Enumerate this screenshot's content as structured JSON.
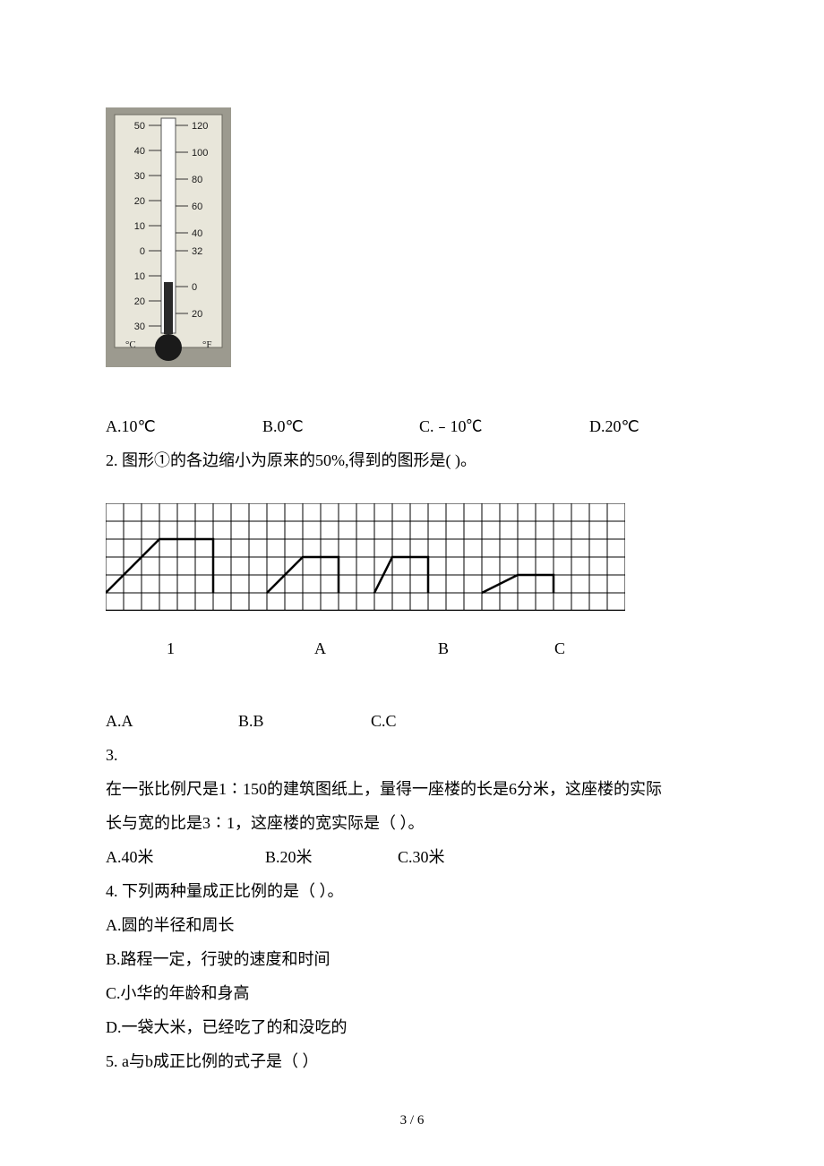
{
  "thermometer": {
    "bg_color": "#9c9a8f",
    "body_color": "#f2f0e5",
    "bulb_color": "#1a1a1a",
    "left_labels": [
      "50",
      "40",
      "30",
      "20",
      "10",
      "0",
      "10",
      "20",
      "30"
    ],
    "right_labels": [
      "120",
      "100",
      "80",
      "60",
      "40",
      "32",
      "0",
      "20"
    ],
    "unit_c": "°C",
    "unit_f": "°F"
  },
  "q1_options": {
    "a": "A.10℃",
    "b": "B.0℃",
    "c": "C.﹣10℃",
    "d": "D.20℃"
  },
  "q2_stem": "2. 图形①的各边缩小为原来的50%,得到的图形是(    )。",
  "grid": {
    "cols": 29,
    "rows": 6,
    "cell": 20,
    "stroke": "#000000",
    "bg": "#ffffff",
    "shapes": [
      {
        "pts": [
          [
            0,
            5
          ],
          [
            3,
            2
          ],
          [
            6,
            2
          ],
          [
            6,
            5
          ]
        ]
      },
      {
        "pts": [
          [
            9,
            5
          ],
          [
            11,
            3
          ],
          [
            13,
            3
          ],
          [
            13,
            5
          ]
        ]
      },
      {
        "pts": [
          [
            15,
            5
          ],
          [
            16,
            3
          ],
          [
            18,
            3
          ],
          [
            18,
            5
          ]
        ]
      },
      {
        "pts": [
          [
            21,
            5
          ],
          [
            23,
            4
          ],
          [
            25,
            4
          ],
          [
            25,
            5
          ]
        ]
      }
    ],
    "labels": {
      "l1": "1",
      "la": "A",
      "lb": "B",
      "lc": "C"
    }
  },
  "q2_options": {
    "a": "A.A",
    "b": "B.B",
    "c": "C.C"
  },
  "q3_num": "3.",
  "q3_l1": "在一张比例尺是1∶150的建筑图纸上，量得一座楼的长是6分米，这座楼的实际",
  "q3_l2": "长与宽的比是3∶1，这座楼的宽实际是（    ）。",
  "q3_options": {
    "a": "A.40米",
    "b": "B.20米",
    "c": "C.30米"
  },
  "q4_stem": "4. 下列两种量成正比例的是（    ）。",
  "q4_a": "A.圆的半径和周长",
  "q4_b": "B.路程一定，行驶的速度和时间",
  "q4_c": "C.小华的年龄和身高",
  "q4_d": "D.一袋大米，已经吃了的和没吃的",
  "q5_stem": "5. a与b成正比例的式子是（    ）",
  "footer": "3 / 6"
}
